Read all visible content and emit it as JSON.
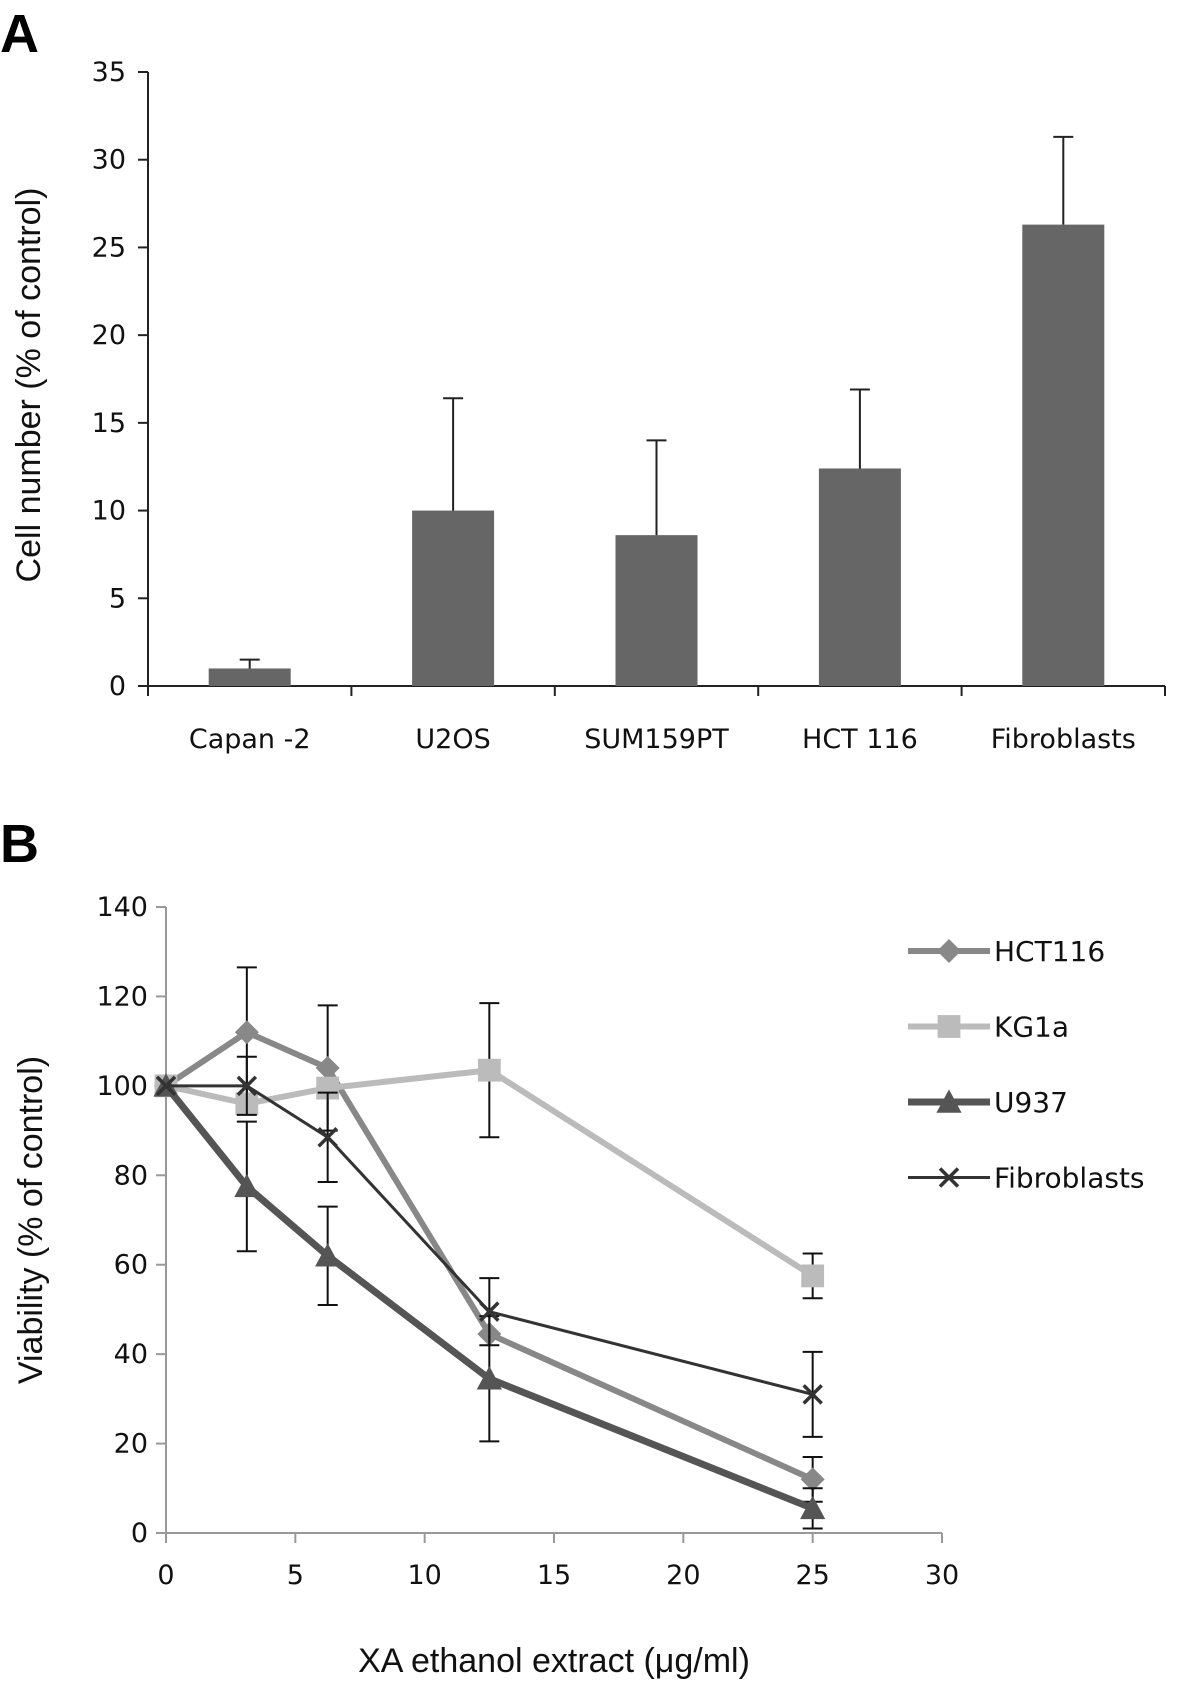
{
  "chart_data": [
    {
      "panel": "A",
      "type": "bar",
      "title": "",
      "xlabel": "",
      "ylabel": "Cell number (% of control)",
      "ylim": [
        0,
        35
      ],
      "yticks": [
        "0",
        "5",
        "10",
        "15",
        "20",
        "25",
        "30",
        "35"
      ],
      "categories": [
        "Capan -2",
        "U2OS",
        "SUM159PT",
        "HCT 116",
        "Fibroblasts"
      ],
      "values": [
        1.0,
        10.0,
        8.6,
        12.4,
        26.3
      ],
      "errors": [
        0.5,
        6.4,
        5.4,
        4.5,
        5.0
      ],
      "bar_color": "#666666"
    },
    {
      "panel": "B",
      "type": "line",
      "title": "",
      "xlabel": "XA ethanol extract (μg/ml)",
      "ylabel": "Viability (% of control)",
      "xlim": [
        0,
        30
      ],
      "ylim": [
        0,
        140
      ],
      "xticks": [
        "0",
        "5",
        "10",
        "15",
        "20",
        "25",
        "30"
      ],
      "yticks": [
        "0",
        "20",
        "40",
        "60",
        "80",
        "100",
        "120",
        "140"
      ],
      "x": [
        0,
        3.125,
        6.25,
        12.5,
        25
      ],
      "series": [
        {
          "name": "HCT116",
          "marker": "diamond",
          "color": "#888888",
          "values": [
            100,
            112,
            104,
            44.5,
            12
          ],
          "errors": [
            0,
            14.5,
            14,
            0,
            5
          ]
        },
        {
          "name": "KG1a",
          "marker": "square",
          "color": "#bbbbbb",
          "values": [
            100,
            96,
            99.5,
            103.5,
            57.5
          ],
          "errors": [
            0,
            0,
            0,
            15,
            5
          ]
        },
        {
          "name": "U937",
          "marker": "triangle",
          "color": "#555555",
          "values": [
            100,
            77.5,
            62,
            34.5,
            5.5
          ],
          "errors": [
            0,
            14.5,
            11,
            14,
            4.5
          ]
        },
        {
          "name": "Fibroblasts",
          "marker": "x",
          "color": "#333333",
          "values": [
            100,
            100,
            88.5,
            49.5,
            31
          ],
          "errors": [
            0,
            6.5,
            10,
            7.5,
            9.5
          ]
        }
      ]
    }
  ]
}
